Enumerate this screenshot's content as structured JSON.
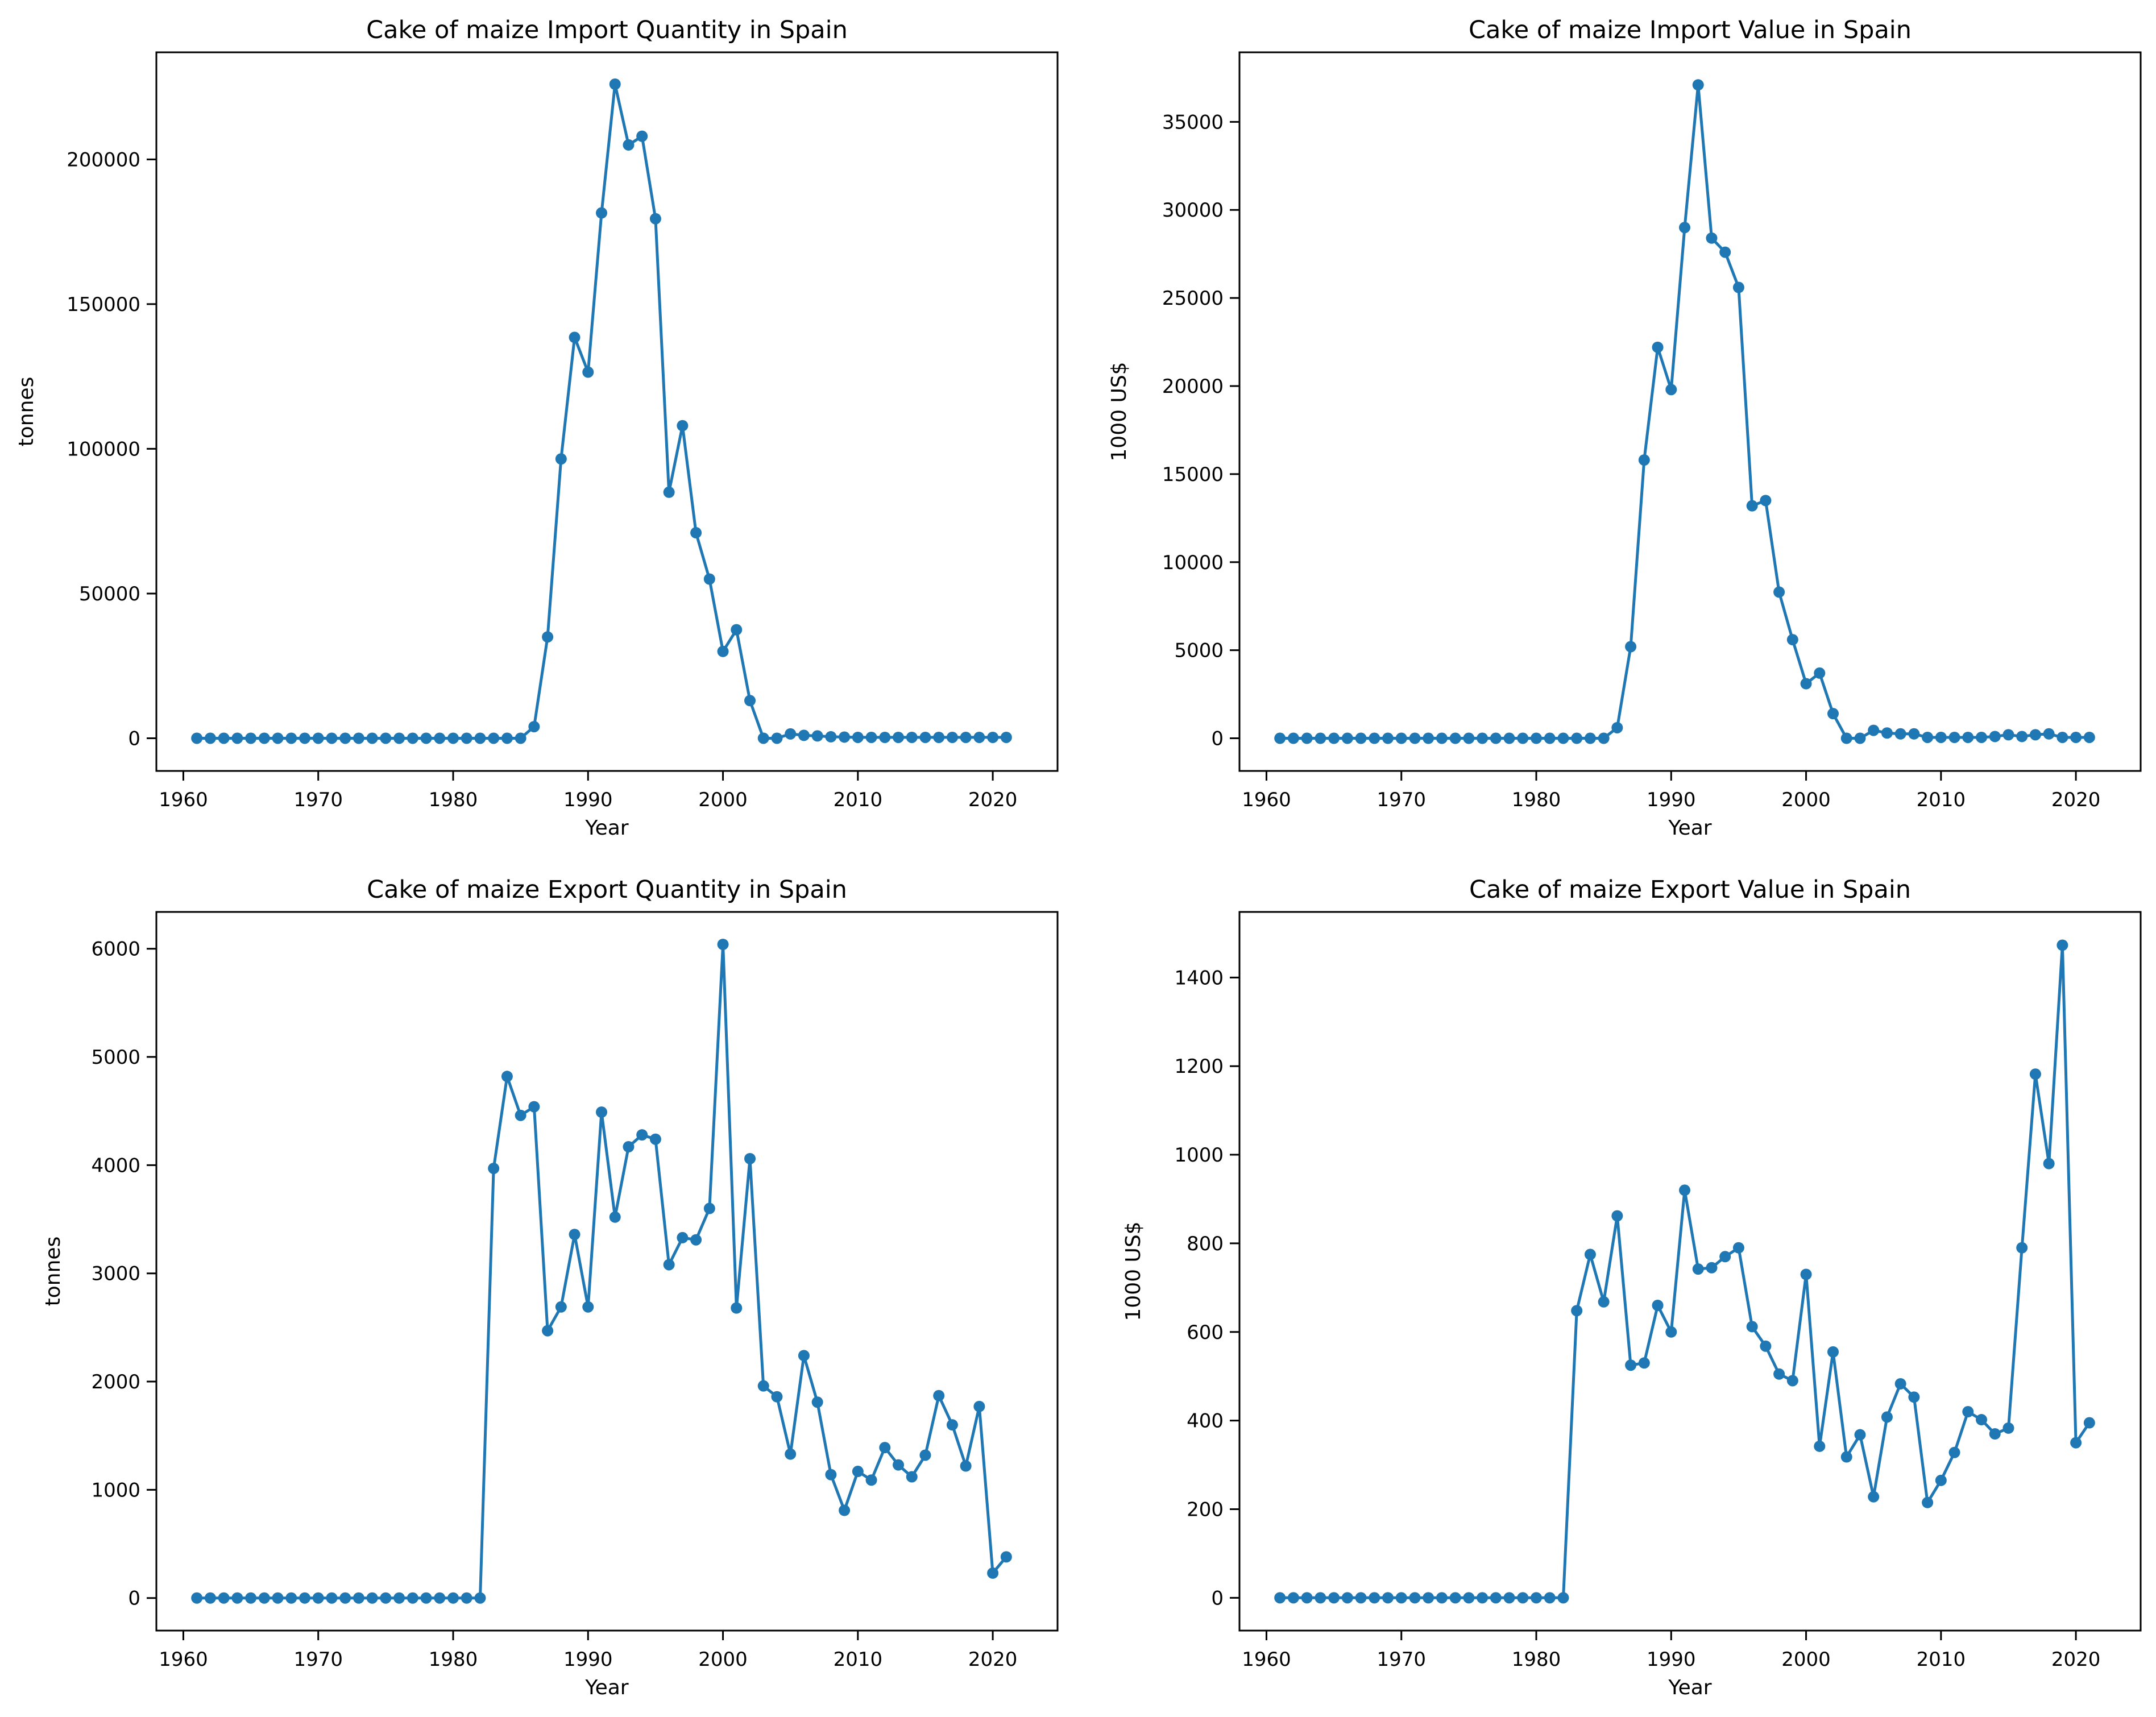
{
  "chart_data": [
    {
      "type": "line",
      "title": "Cake of maize Import Quantity in Spain",
      "xlabel": "Year",
      "ylabel": "tonnes",
      "xlim": [
        1958,
        2024.8
      ],
      "ylim": [
        -11300,
        237000
      ],
      "xticks": [
        1960,
        1970,
        1980,
        1990,
        2000,
        2010,
        2020
      ],
      "yticks": [
        0,
        50000,
        100000,
        150000,
        200000
      ],
      "grid": false,
      "color": "#1f77b4",
      "x": [
        1961,
        1962,
        1963,
        1964,
        1965,
        1966,
        1967,
        1968,
        1969,
        1970,
        1971,
        1972,
        1973,
        1974,
        1975,
        1976,
        1977,
        1978,
        1979,
        1980,
        1981,
        1982,
        1983,
        1984,
        1985,
        1986,
        1987,
        1988,
        1989,
        1990,
        1991,
        1992,
        1993,
        1994,
        1995,
        1996,
        1997,
        1998,
        1999,
        2000,
        2001,
        2002,
        2003,
        2004,
        2005,
        2006,
        2007,
        2008,
        2009,
        2010,
        2011,
        2012,
        2013,
        2014,
        2015,
        2016,
        2017,
        2018,
        2019,
        2020,
        2021
      ],
      "y": [
        0,
        0,
        0,
        0,
        0,
        0,
        0,
        0,
        0,
        0,
        0,
        0,
        0,
        0,
        0,
        0,
        0,
        0,
        0,
        0,
        0,
        0,
        0,
        0,
        0,
        4000,
        35000,
        96500,
        138500,
        126500,
        181500,
        226000,
        205000,
        208000,
        179500,
        85000,
        108000,
        71000,
        55000,
        30000,
        37500,
        13000,
        0,
        0,
        1500,
        1000,
        800,
        500,
        400,
        300,
        300,
        300,
        300,
        300,
        300,
        300,
        300,
        300,
        300,
        300,
        300
      ]
    },
    {
      "type": "line",
      "title": "Cake of maize Import Value in Spain",
      "xlabel": "Year",
      "ylabel": "1000 US$",
      "xlim": [
        1958,
        2024.8
      ],
      "ylim": [
        -1855,
        38950
      ],
      "xticks": [
        1960,
        1970,
        1980,
        1990,
        2000,
        2010,
        2020
      ],
      "yticks": [
        0,
        5000,
        10000,
        15000,
        20000,
        25000,
        30000,
        35000
      ],
      "grid": false,
      "color": "#1f77b4",
      "x": [
        1961,
        1962,
        1963,
        1964,
        1965,
        1966,
        1967,
        1968,
        1969,
        1970,
        1971,
        1972,
        1973,
        1974,
        1975,
        1976,
        1977,
        1978,
        1979,
        1980,
        1981,
        1982,
        1983,
        1984,
        1985,
        1986,
        1987,
        1988,
        1989,
        1990,
        1991,
        1992,
        1993,
        1994,
        1995,
        1996,
        1997,
        1998,
        1999,
        2000,
        2001,
        2002,
        2003,
        2004,
        2005,
        2006,
        2007,
        2008,
        2009,
        2010,
        2011,
        2012,
        2013,
        2014,
        2015,
        2016,
        2017,
        2018,
        2019,
        2020,
        2021
      ],
      "y": [
        0,
        0,
        0,
        0,
        0,
        0,
        0,
        0,
        0,
        0,
        0,
        0,
        0,
        0,
        0,
        0,
        0,
        0,
        0,
        0,
        0,
        0,
        0,
        0,
        0,
        600,
        5200,
        15800,
        22200,
        19800,
        29000,
        37100,
        28400,
        27600,
        25600,
        13200,
        13500,
        8300,
        5600,
        3100,
        3700,
        1400,
        0,
        0,
        450,
        300,
        250,
        250,
        50,
        50,
        50,
        50,
        50,
        100,
        200,
        100,
        200,
        250,
        50,
        50,
        50
      ]
    },
    {
      "type": "line",
      "title": "Cake of maize Export Quantity in Spain",
      "xlabel": "Year",
      "ylabel": "tonnes",
      "xlim": [
        1958,
        2024.8
      ],
      "ylim": [
        -301,
        6340
      ],
      "xticks": [
        1960,
        1970,
        1980,
        1990,
        2000,
        2010,
        2020
      ],
      "yticks": [
        0,
        1000,
        2000,
        3000,
        4000,
        5000,
        6000
      ],
      "grid": false,
      "color": "#1f77b4",
      "x": [
        1961,
        1962,
        1963,
        1964,
        1965,
        1966,
        1967,
        1968,
        1969,
        1970,
        1971,
        1972,
        1973,
        1974,
        1975,
        1976,
        1977,
        1978,
        1979,
        1980,
        1981,
        1982,
        1983,
        1984,
        1985,
        1986,
        1987,
        1988,
        1989,
        1990,
        1991,
        1992,
        1993,
        1994,
        1995,
        1996,
        1997,
        1998,
        1999,
        2000,
        2001,
        2002,
        2003,
        2004,
        2005,
        2006,
        2007,
        2008,
        2009,
        2010,
        2011,
        2012,
        2013,
        2014,
        2015,
        2016,
        2017,
        2018,
        2019,
        2020,
        2021
      ],
      "y": [
        0,
        0,
        0,
        0,
        0,
        0,
        0,
        0,
        0,
        0,
        0,
        0,
        0,
        0,
        0,
        0,
        0,
        0,
        0,
        0,
        0,
        0,
        3970,
        4820,
        4460,
        4540,
        2470,
        2690,
        3360,
        2690,
        4490,
        3520,
        4170,
        4280,
        4240,
        3080,
        3330,
        3310,
        3600,
        6040,
        2680,
        4060,
        1960,
        1860,
        1330,
        2240,
        1810,
        1140,
        810,
        1170,
        1090,
        1390,
        1230,
        1120,
        1320,
        1870,
        1600,
        1220,
        1770,
        230,
        380
      ]
    },
    {
      "type": "line",
      "title": "Cake of maize Export Value in Spain",
      "xlabel": "Year",
      "ylabel": "1000 US$",
      "xlim": [
        1958,
        2024.8
      ],
      "ylim": [
        -74,
        1548
      ],
      "xticks": [
        1960,
        1970,
        1980,
        1990,
        2000,
        2010,
        2020
      ],
      "yticks": [
        0,
        200,
        400,
        600,
        800,
        1000,
        1200,
        1400
      ],
      "grid": false,
      "color": "#1f77b4",
      "x": [
        1961,
        1962,
        1963,
        1964,
        1965,
        1966,
        1967,
        1968,
        1969,
        1970,
        1971,
        1972,
        1973,
        1974,
        1975,
        1976,
        1977,
        1978,
        1979,
        1980,
        1981,
        1982,
        1983,
        1984,
        1985,
        1986,
        1987,
        1988,
        1989,
        1990,
        1991,
        1992,
        1993,
        1994,
        1995,
        1996,
        1997,
        1998,
        1999,
        2000,
        2001,
        2002,
        2003,
        2004,
        2005,
        2006,
        2007,
        2008,
        2009,
        2010,
        2011,
        2012,
        2013,
        2014,
        2015,
        2016,
        2017,
        2018,
        2019,
        2020,
        2021
      ],
      "y": [
        0,
        0,
        0,
        0,
        0,
        0,
        0,
        0,
        0,
        0,
        0,
        0,
        0,
        0,
        0,
        0,
        0,
        0,
        0,
        0,
        0,
        0,
        648,
        775,
        668,
        862,
        525,
        530,
        660,
        600,
        920,
        742,
        745,
        770,
        790,
        612,
        568,
        505,
        490,
        730,
        342,
        555,
        318,
        368,
        228,
        408,
        483,
        453,
        215,
        265,
        328,
        420,
        402,
        370,
        383,
        790,
        1182,
        980,
        1473,
        350,
        395
      ]
    }
  ]
}
